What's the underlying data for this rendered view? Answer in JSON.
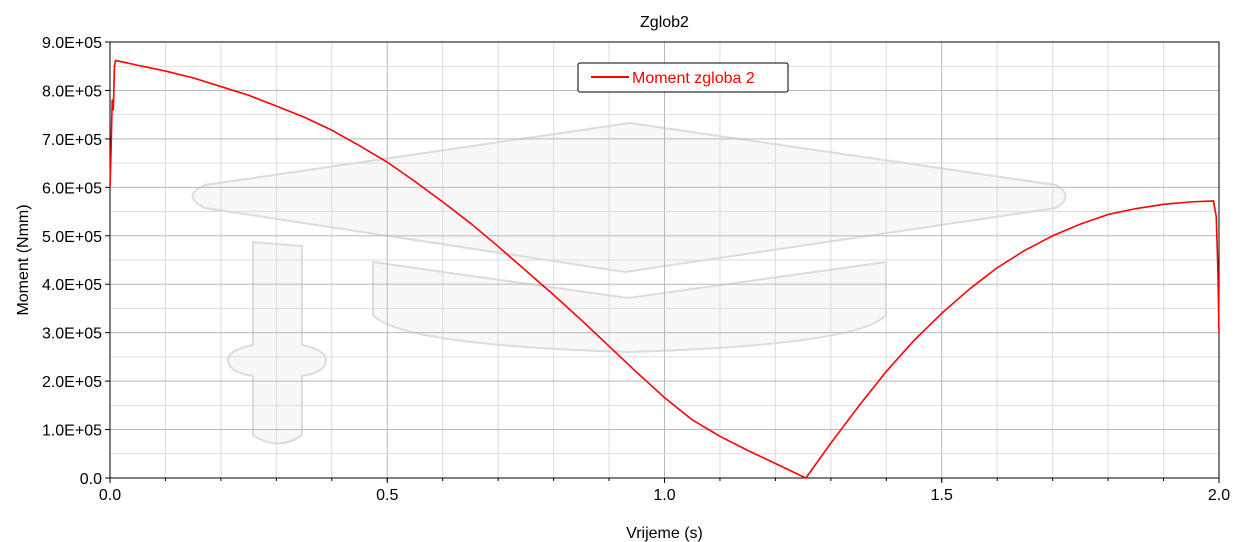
{
  "chart_data": {
    "type": "line",
    "title": "Zglob2",
    "xlabel": "Vrijeme (s)",
    "ylabel": "Moment (Nmm)",
    "xlim": [
      0.0,
      2.0
    ],
    "ylim": [
      0,
      900000
    ],
    "x_ticks": [
      0.0,
      0.5,
      1.0,
      1.5,
      2.0
    ],
    "x_tick_labels": [
      "0.0",
      "0.5",
      "1.0",
      "1.5",
      "2.0"
    ],
    "y_ticks": [
      0,
      100000,
      200000,
      300000,
      400000,
      500000,
      600000,
      700000,
      800000,
      900000
    ],
    "y_tick_labels": [
      "0.0",
      "1.0E+05",
      "2.0E+05",
      "3.0E+05",
      "4.0E+05",
      "5.0E+05",
      "6.0E+05",
      "7.0E+05",
      "8.0E+05",
      "9.0E+05"
    ],
    "grid": true,
    "legend": "top-center",
    "series": [
      {
        "name": "Moment zgloba 2",
        "color": "#ff0000",
        "x": [
          0.0,
          0.002,
          0.004,
          0.006,
          0.008,
          0.01,
          0.05,
          0.1,
          0.15,
          0.2,
          0.25,
          0.3,
          0.35,
          0.4,
          0.45,
          0.5,
          0.55,
          0.6,
          0.65,
          0.7,
          0.75,
          0.8,
          0.85,
          0.9,
          0.95,
          1.0,
          1.05,
          1.1,
          1.15,
          1.2,
          1.255,
          1.3,
          1.35,
          1.4,
          1.45,
          1.5,
          1.55,
          1.6,
          1.65,
          1.7,
          1.75,
          1.8,
          1.85,
          1.9,
          1.95,
          1.99,
          1.995,
          1.998,
          2.0
        ],
        "y": [
          600000,
          680000,
          780000,
          760000,
          850000,
          862000,
          852000,
          840000,
          826000,
          808000,
          790000,
          768000,
          745000,
          718000,
          686000,
          652000,
          612000,
          570000,
          526000,
          478000,
          428000,
          378000,
          326000,
          272000,
          218000,
          166000,
          120000,
          86000,
          57000,
          30000,
          0,
          72000,
          148000,
          220000,
          284000,
          340000,
          390000,
          434000,
          470000,
          500000,
          524000,
          544000,
          556000,
          565000,
          570000,
          572000,
          540000,
          430000,
          300000
        ]
      }
    ]
  }
}
